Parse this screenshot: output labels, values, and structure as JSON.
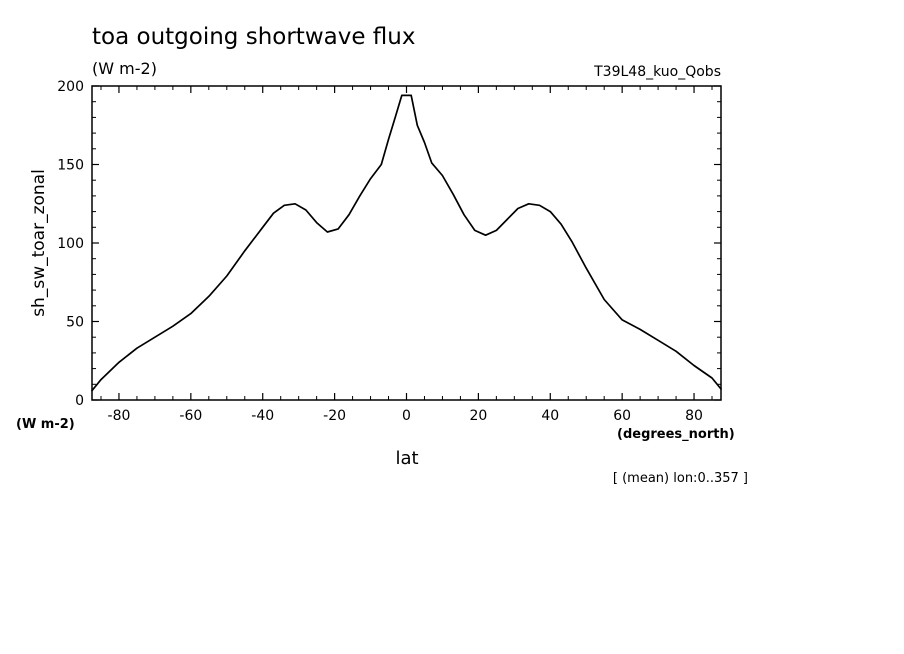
{
  "chart_data": {
    "type": "line",
    "title": "toa outgoing shortwave flux",
    "subtitle": "(W m-2)",
    "run_label": "T39L48_kuo_Qobs",
    "xlabel": "lat",
    "ylabel": "sh_sw_toar_zonal",
    "x_units": "(degrees_north)",
    "y_units": "(W m-2)",
    "footnote": "[ (mean) lon:0..357 ]",
    "xlim": [
      -87.5,
      87.5
    ],
    "ylim": [
      0,
      200
    ],
    "xticks": [
      -80,
      -60,
      -40,
      -20,
      0,
      20,
      40,
      60,
      80
    ],
    "xtick_labels": [
      "-80",
      "-60",
      "-40",
      "-20",
      "0",
      "20",
      "40",
      "60",
      "80"
    ],
    "yticks": [
      0,
      50,
      100,
      150,
      200
    ],
    "ytick_labels": [
      "0",
      "50",
      "100",
      "150",
      "200"
    ],
    "grid": false,
    "line_color": "#000000",
    "series": [
      {
        "x": [
          -87.5,
          -85,
          -80,
          -75,
          -70,
          -65,
          -60,
          -55,
          -50,
          -45,
          -40,
          -37,
          -34,
          -31,
          -28,
          -25,
          -22,
          -19,
          -16,
          -13,
          -10,
          -7,
          -5,
          -3,
          -1.3,
          0,
          1.3,
          3,
          5,
          7,
          10,
          13,
          16,
          19,
          22,
          25,
          28,
          31,
          34,
          37,
          40,
          43,
          46,
          50,
          55,
          60,
          65,
          70,
          75,
          80,
          85,
          87.5
        ],
        "y": [
          6,
          13,
          24,
          33,
          40,
          47,
          55,
          66,
          79,
          95,
          110,
          119,
          124,
          125,
          121,
          113,
          107,
          109,
          118,
          130,
          141,
          150,
          166,
          181,
          194,
          194,
          194,
          175,
          164,
          151,
          143,
          131,
          118,
          108,
          105,
          108,
          115,
          122,
          125,
          124,
          120,
          112,
          101,
          84,
          64,
          51,
          45,
          38,
          31,
          22,
          14,
          7
        ]
      }
    ]
  }
}
